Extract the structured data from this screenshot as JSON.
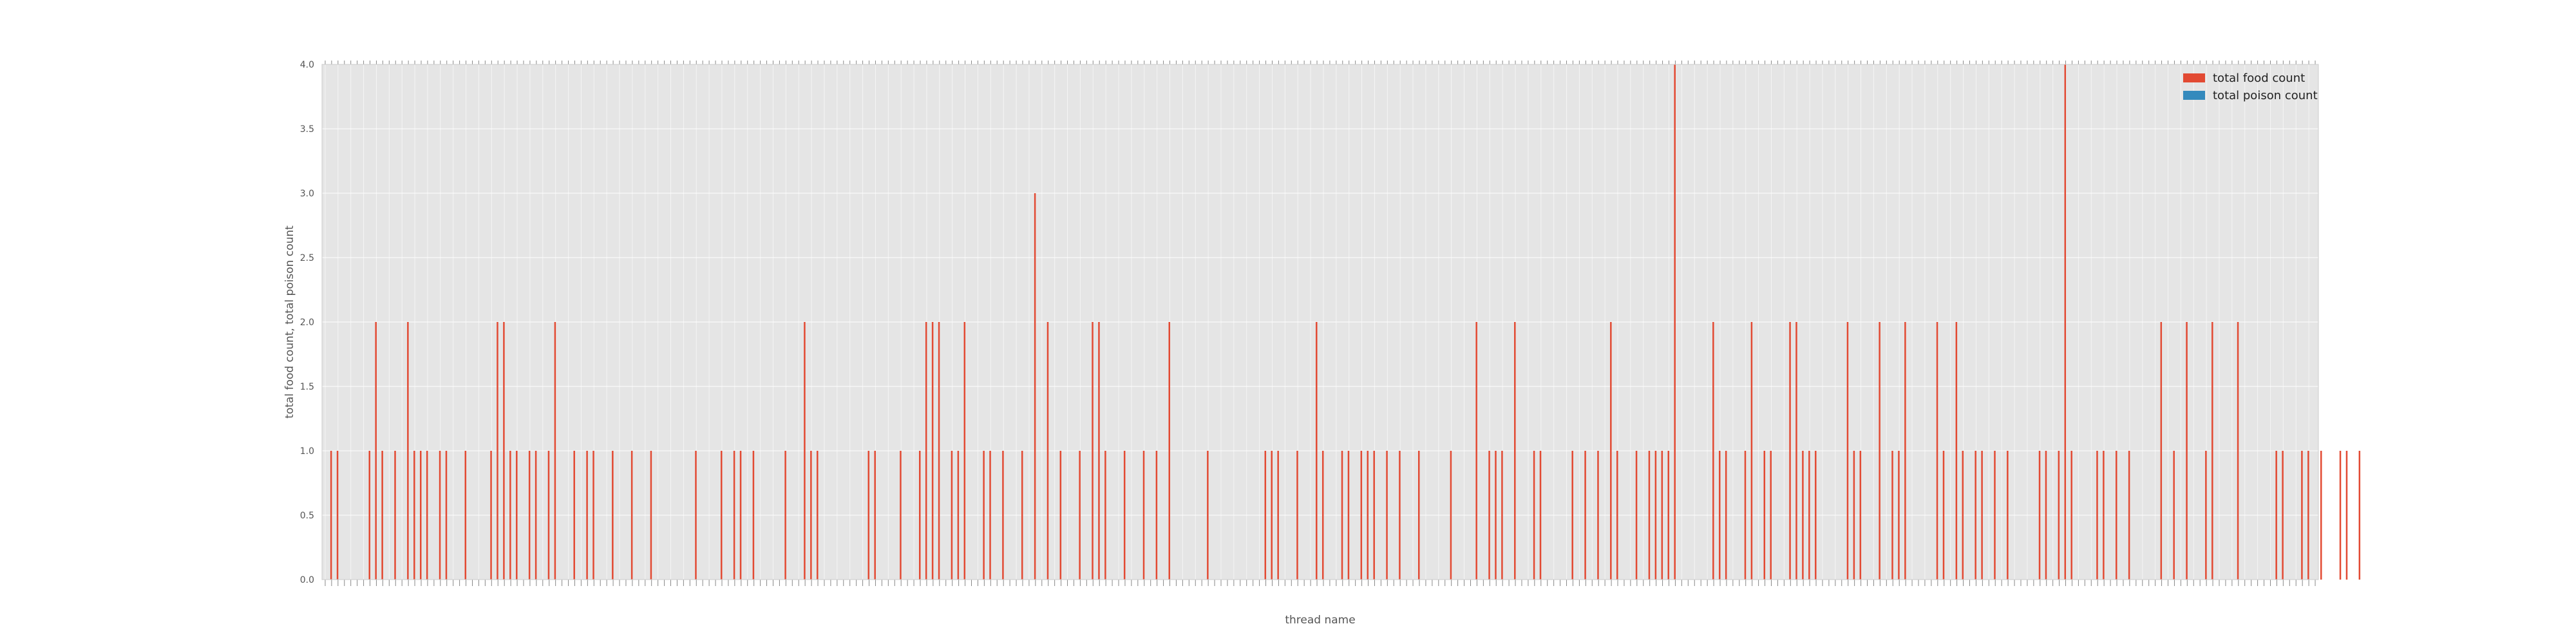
{
  "chart_data": {
    "type": "bar",
    "xlabel": "thread name",
    "ylabel": "total food count, total poison count",
    "ylim": [
      0,
      4.0
    ],
    "yticks": [
      "0.0",
      "0.5",
      "1.0",
      "1.5",
      "2.0",
      "2.5",
      "3.0",
      "3.5",
      "4.0"
    ],
    "category_count": 312,
    "series": [
      {
        "name": "total food count",
        "color": "#E24A33",
        "values": [
          0,
          1,
          1,
          0,
          0,
          0,
          0,
          1,
          2,
          1,
          0,
          1,
          0,
          2,
          1,
          1,
          1,
          0,
          1,
          1,
          0,
          0,
          1,
          0,
          0,
          0,
          1,
          2,
          2,
          1,
          1,
          0,
          1,
          1,
          0,
          1,
          2,
          0,
          0,
          1,
          0,
          1,
          1,
          0,
          0,
          1,
          0,
          0,
          1,
          0,
          0,
          1,
          0,
          0,
          0,
          0,
          0,
          0,
          1,
          0,
          0,
          0,
          1,
          0,
          1,
          1,
          0,
          1,
          0,
          0,
          0,
          0,
          1,
          0,
          0,
          2,
          1,
          1,
          0,
          0,
          0,
          0,
          0,
          0,
          0,
          1,
          1,
          0,
          0,
          0,
          1,
          0,
          0,
          1,
          2,
          2,
          2,
          0,
          1,
          1,
          2,
          0,
          0,
          1,
          1,
          0,
          1,
          0,
          0,
          1,
          0,
          3,
          0,
          2,
          0,
          1,
          0,
          0,
          1,
          0,
          2,
          2,
          1,
          0,
          0,
          1,
          0,
          0,
          1,
          0,
          1,
          0,
          2,
          0,
          0,
          0,
          0,
          0,
          1,
          0,
          0,
          0,
          0,
          0,
          0,
          0,
          0,
          1,
          1,
          1,
          0,
          0,
          1,
          0,
          0,
          2,
          1,
          0,
          0,
          1,
          1,
          0,
          1,
          1,
          1,
          0,
          1,
          0,
          1,
          0,
          0,
          1,
          0,
          0,
          0,
          0,
          1,
          0,
          0,
          0,
          2,
          0,
          1,
          1,
          1,
          0,
          2,
          0,
          0,
          1,
          1,
          0,
          0,
          0,
          0,
          1,
          0,
          1,
          0,
          1,
          0,
          2,
          1,
          0,
          0,
          1,
          0,
          1,
          1,
          1,
          1,
          4,
          0,
          0,
          0,
          0,
          0,
          2,
          1,
          1,
          0,
          0,
          1,
          2,
          0,
          1,
          1,
          0,
          0,
          2,
          2,
          1,
          1,
          1,
          0,
          0,
          0,
          0,
          2,
          1,
          1,
          0,
          0,
          2,
          0,
          1,
          1,
          2,
          0,
          0,
          0,
          0,
          2,
          1,
          0,
          2,
          1,
          0,
          1,
          1,
          0,
          1,
          0,
          1,
          0,
          0,
          0,
          0,
          1,
          1,
          0,
          1,
          4,
          1,
          0,
          0,
          0,
          1,
          1,
          0,
          1,
          0,
          1,
          0,
          0,
          0,
          0,
          2,
          0,
          1,
          0,
          2,
          0,
          0,
          1,
          2,
          0,
          0,
          0,
          2,
          0,
          0,
          0,
          0,
          0,
          1,
          1,
          0,
          0,
          1,
          1,
          0,
          1,
          0,
          0,
          1,
          1,
          0,
          1,
          0,
          0
        ],
        "x_positions_note": ""
      },
      {
        "name": "total poison count",
        "color": "#348ABD",
        "values": [
          0,
          0,
          0,
          0,
          0,
          0,
          0,
          0,
          0,
          0,
          0,
          0,
          0,
          0,
          0,
          0,
          0,
          0,
          0,
          0,
          0,
          0,
          0,
          0,
          0,
          0,
          0,
          0,
          0,
          0,
          0,
          0,
          0,
          0,
          0,
          0,
          0,
          0,
          0,
          0,
          0,
          0,
          0,
          0,
          0,
          0,
          0,
          0,
          0,
          0,
          0,
          0,
          0,
          0,
          0,
          0,
          0,
          0,
          0,
          0,
          0,
          0,
          0,
          0,
          0,
          0,
          0,
          0,
          0,
          0,
          0,
          0,
          0,
          0,
          0,
          0,
          0,
          0,
          0,
          0,
          0,
          0,
          0,
          0,
          0,
          0,
          0,
          0,
          0,
          0,
          0,
          0,
          0,
          0,
          0,
          0,
          0,
          0,
          0,
          0,
          0,
          0,
          0,
          0,
          0,
          0,
          0,
          0,
          0,
          0,
          0,
          0,
          0,
          0,
          0,
          0,
          0,
          0,
          0,
          0,
          0,
          0,
          0,
          0,
          0,
          0,
          0,
          0,
          0,
          0,
          0,
          0,
          0,
          0,
          0,
          0,
          0,
          0,
          0,
          0,
          0,
          0,
          0,
          0,
          0,
          0,
          0,
          0,
          0,
          0,
          0,
          0,
          0,
          0,
          0,
          0,
          0,
          0,
          0,
          0,
          0,
          0,
          0,
          0,
          0,
          0,
          0,
          0,
          0,
          0,
          0,
          0,
          0,
          0,
          0,
          0,
          0,
          0,
          0,
          0,
          0,
          0,
          0,
          0,
          0,
          0,
          0,
          0,
          0,
          0,
          0,
          0,
          0,
          0,
          0,
          0,
          0,
          0,
          0,
          0,
          0,
          0,
          0,
          0,
          0,
          0,
          0,
          0,
          0,
          0,
          0,
          0,
          0,
          0,
          0,
          0,
          0,
          0,
          0,
          0,
          0,
          0,
          0,
          0,
          0,
          0,
          0,
          0,
          0,
          0,
          0,
          0,
          0,
          0,
          0,
          0,
          0,
          0,
          0,
          0,
          0,
          0,
          0,
          0,
          0,
          0,
          0,
          0,
          0,
          0,
          0,
          0,
          0,
          0,
          0,
          0,
          0,
          0,
          0,
          0,
          0,
          0,
          0,
          0,
          0,
          0,
          0,
          0,
          0,
          0,
          0,
          0,
          0,
          0,
          0,
          0,
          0,
          0,
          0,
          0,
          0,
          0,
          0,
          0,
          0,
          0,
          0,
          0,
          0,
          0,
          0,
          0,
          0,
          0,
          0,
          0,
          0,
          0,
          0,
          0,
          0,
          0,
          0,
          0,
          0,
          0,
          0,
          0,
          0,
          0,
          0,
          0,
          0,
          0,
          0,
          0,
          0,
          0,
          0,
          0,
          0,
          0,
          0
        ]
      }
    ],
    "legend_placement": "top-right",
    "grid": true,
    "background": "#E5E5E5"
  }
}
